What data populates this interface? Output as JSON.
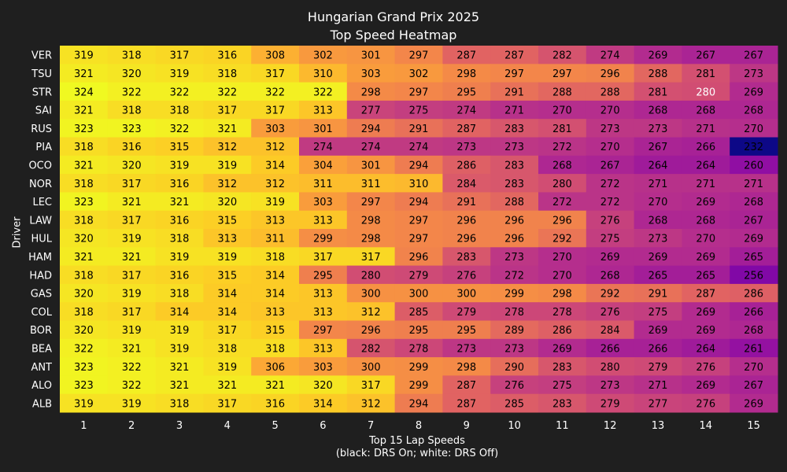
{
  "chart_data": {
    "type": "heatmap",
    "title": "Hungarian Grand Prix 2025",
    "subtitle": "Top Speed Heatmap",
    "xlabel": "Top 15 Lap Speeds",
    "xlabel_note": "(black: DRS On; white: DRS Off)",
    "ylabel": "Driver",
    "colormap": "plasma",
    "value_range": [
      232,
      324
    ],
    "x_categories": [
      "1",
      "2",
      "3",
      "4",
      "5",
      "6",
      "7",
      "8",
      "9",
      "10",
      "11",
      "12",
      "13",
      "14",
      "15"
    ],
    "drivers": [
      "VER",
      "TSU",
      "STR",
      "SAI",
      "RUS",
      "PIA",
      "OCO",
      "NOR",
      "LEC",
      "LAW",
      "HUL",
      "HAM",
      "HAD",
      "GAS",
      "COL",
      "BOR",
      "BEA",
      "ANT",
      "ALO",
      "ALB"
    ],
    "values": [
      [
        319,
        318,
        317,
        316,
        308,
        302,
        301,
        297,
        287,
        287,
        282,
        274,
        269,
        267,
        267
      ],
      [
        321,
        320,
        319,
        318,
        317,
        310,
        303,
        302,
        298,
        297,
        297,
        296,
        288,
        281,
        273
      ],
      [
        324,
        322,
        322,
        322,
        322,
        322,
        298,
        297,
        295,
        291,
        288,
        288,
        281,
        280,
        269
      ],
      [
        321,
        318,
        318,
        317,
        317,
        313,
        277,
        275,
        274,
        271,
        270,
        270,
        268,
        268,
        268
      ],
      [
        323,
        323,
        322,
        321,
        303,
        301,
        294,
        291,
        287,
        283,
        281,
        273,
        273,
        271,
        270
      ],
      [
        318,
        316,
        315,
        312,
        312,
        274,
        274,
        274,
        273,
        273,
        272,
        270,
        267,
        266,
        232
      ],
      [
        321,
        320,
        319,
        319,
        314,
        304,
        301,
        294,
        286,
        283,
        268,
        267,
        264,
        264,
        260
      ],
      [
        318,
        317,
        316,
        312,
        312,
        311,
        311,
        310,
        284,
        283,
        280,
        272,
        271,
        271,
        271
      ],
      [
        323,
        321,
        321,
        320,
        319,
        303,
        297,
        294,
        291,
        288,
        272,
        272,
        270,
        269,
        268
      ],
      [
        318,
        317,
        316,
        315,
        313,
        313,
        298,
        297,
        296,
        296,
        296,
        276,
        268,
        268,
        267
      ],
      [
        320,
        319,
        318,
        313,
        311,
        299,
        298,
        297,
        296,
        296,
        292,
        275,
        273,
        270,
        269
      ],
      [
        321,
        321,
        319,
        319,
        318,
        317,
        317,
        296,
        283,
        273,
        270,
        269,
        269,
        269,
        265
      ],
      [
        318,
        317,
        316,
        315,
        314,
        295,
        280,
        279,
        276,
        272,
        270,
        268,
        265,
        265,
        256
      ],
      [
        320,
        319,
        318,
        314,
        314,
        313,
        300,
        300,
        300,
        299,
        298,
        292,
        291,
        287,
        286
      ],
      [
        318,
        317,
        314,
        314,
        313,
        313,
        312,
        285,
        279,
        278,
        278,
        276,
        275,
        269,
        266
      ],
      [
        320,
        319,
        319,
        317,
        315,
        297,
        296,
        295,
        295,
        289,
        286,
        284,
        269,
        269,
        268
      ],
      [
        322,
        321,
        319,
        318,
        318,
        313,
        282,
        278,
        273,
        273,
        269,
        266,
        266,
        264,
        261
      ],
      [
        323,
        322,
        321,
        319,
        306,
        303,
        300,
        299,
        298,
        290,
        283,
        280,
        279,
        276,
        270
      ],
      [
        323,
        322,
        321,
        321,
        321,
        320,
        317,
        299,
        287,
        276,
        275,
        273,
        271,
        269,
        267
      ],
      [
        319,
        319,
        318,
        317,
        316,
        314,
        312,
        294,
        287,
        285,
        283,
        279,
        277,
        276,
        269
      ]
    ],
    "drs_off": [
      [
        2,
        13
      ]
    ]
  }
}
